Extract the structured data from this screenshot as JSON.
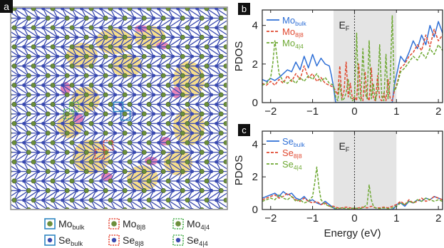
{
  "panel_a": {
    "label": "a",
    "legend": [
      {
        "main": "Mo",
        "sub": "bulk",
        "kind": "mo",
        "style": "solid",
        "color": "#2e86c1"
      },
      {
        "main": "Mo",
        "sub": "8|8",
        "kind": "mo",
        "style": "dashed",
        "color": "#e74c3c"
      },
      {
        "main": "Mo",
        "sub": "4|4",
        "kind": "mo",
        "style": "dashed",
        "color": "#4caf50"
      },
      {
        "main": "Se",
        "sub": "bulk",
        "kind": "se",
        "style": "solid",
        "color": "#2e86c1"
      },
      {
        "main": "Se",
        "sub": "8|8",
        "kind": "se",
        "style": "dashed",
        "color": "#e74c3c"
      },
      {
        "main": "Se",
        "sub": "4|4",
        "kind": "se",
        "style": "dashed",
        "color": "#4caf50"
      }
    ],
    "colors": {
      "mo": "#6c8f3c",
      "se": "#3a4ab0",
      "yellow": "#f7dc85",
      "pink": "#e685b9",
      "frame": "#888888"
    }
  },
  "chart_data": [
    {
      "type": "line",
      "panel": "b",
      "xlabel": "",
      "ylabel": "PDOS",
      "xlim": [
        -2.2,
        2.1
      ],
      "ylim": [
        0,
        4.8
      ],
      "xticks": [
        -2,
        -1,
        0,
        1,
        2
      ],
      "yticks": [
        0,
        2,
        4
      ],
      "xtick_labels": [
        "−2",
        "−1",
        "0",
        "1",
        "2"
      ],
      "ytick_labels": [
        "0",
        "2",
        "4"
      ],
      "fermi_label": {
        "main": "E",
        "sub": "F"
      },
      "gap_shade": [
        -0.5,
        1.0
      ],
      "legend": [
        {
          "main": "Mo",
          "sub": "bulk",
          "color": "#2e6fd6",
          "dashed": false
        },
        {
          "main": "Mo",
          "sub": "8|8",
          "color": "#e0482f",
          "dashed": true
        },
        {
          "main": "Mo",
          "sub": "4|4",
          "color": "#6da832",
          "dashed": true
        }
      ],
      "series": [
        {
          "color": "#2e6fd6",
          "dashed": false,
          "x": [
            -2.2,
            -2.1,
            -2.0,
            -1.9,
            -1.8,
            -1.7,
            -1.6,
            -1.5,
            -1.4,
            -1.3,
            -1.2,
            -1.1,
            -1.0,
            -0.9,
            -0.8,
            -0.7,
            -0.6,
            -0.55,
            -0.5,
            -0.45,
            0.9,
            0.95,
            1.0,
            1.05,
            1.1,
            1.2,
            1.3,
            1.4,
            1.5,
            1.6,
            1.7,
            1.8,
            1.9,
            2.0,
            2.1
          ],
          "y": [
            1.2,
            1.1,
            1.25,
            1.15,
            1.3,
            1.5,
            1.7,
            1.6,
            2.1,
            1.7,
            2.4,
            1.8,
            2.5,
            1.9,
            2.3,
            2.0,
            1.9,
            1.4,
            0.8,
            0,
            0,
            0.9,
            1.4,
            1.9,
            2.4,
            2.1,
            2.6,
            3.2,
            2.8,
            3.5,
            3.0,
            4.0,
            3.4,
            4.2,
            3.6
          ]
        },
        {
          "color": "#e0482f",
          "dashed": true,
          "x": [
            -2.2,
            -2.1,
            -2.0,
            -1.9,
            -1.8,
            -1.7,
            -1.6,
            -1.5,
            -1.4,
            -1.3,
            -1.2,
            -1.1,
            -1.0,
            -0.9,
            -0.8,
            -0.7,
            -0.6,
            -0.5,
            -0.4,
            -0.35,
            -0.3,
            -0.25,
            -0.2,
            -0.15,
            -0.1,
            -0.05,
            0.0,
            0.05,
            0.1,
            0.15,
            0.2,
            0.25,
            0.3,
            0.35,
            0.4,
            0.45,
            0.5,
            0.55,
            0.6,
            0.65,
            0.7,
            0.75,
            0.8,
            0.85,
            0.9,
            0.95,
            1.0,
            1.05,
            1.1,
            1.2,
            1.3,
            1.4,
            1.5,
            1.6,
            1.7,
            1.8,
            1.9,
            2.0,
            2.1
          ],
          "y": [
            1.0,
            0.9,
            1.1,
            0.9,
            1.2,
            1.0,
            1.4,
            1.1,
            1.5,
            1.2,
            1.9,
            1.3,
            1.5,
            1.1,
            1.3,
            1.0,
            0.9,
            0.8,
            0.4,
            1.9,
            0.2,
            0.6,
            2.1,
            0.3,
            1.0,
            0.2,
            0.3,
            0.1,
            2.0,
            0.3,
            0.1,
            1.6,
            0.3,
            0.1,
            1.8,
            0.2,
            0.1,
            1.4,
            0.2,
            0.1,
            0.5,
            0.1,
            1.2,
            0.2,
            0.1,
            0.6,
            0.9,
            1.3,
            1.8,
            2.0,
            2.4,
            2.6,
            3.0,
            2.7,
            3.5,
            2.9,
            3.8,
            3.2,
            3.5
          ]
        },
        {
          "color": "#6da832",
          "dashed": true,
          "x": [
            -2.2,
            -2.1,
            -2.0,
            -1.95,
            -1.9,
            -1.85,
            -1.8,
            -1.7,
            -1.6,
            -1.5,
            -1.4,
            -1.3,
            -1.2,
            -1.1,
            -1.0,
            -0.9,
            -0.8,
            -0.7,
            -0.6,
            -0.5,
            -0.45,
            -0.4,
            -0.35,
            -0.3,
            -0.25,
            -0.2,
            -0.15,
            -0.1,
            -0.05,
            0.0,
            0.05,
            0.1,
            0.15,
            0.2,
            0.25,
            0.3,
            0.35,
            0.4,
            0.45,
            0.5,
            0.55,
            0.6,
            0.65,
            0.7,
            0.75,
            0.8,
            0.85,
            0.9,
            0.95,
            1.0,
            1.05,
            1.1,
            1.2,
            1.3,
            1.4,
            1.5,
            1.6,
            1.7,
            1.8,
            1.9,
            2.0,
            2.1
          ],
          "y": [
            0.9,
            1.0,
            1.3,
            2.0,
            3.2,
            2.4,
            1.5,
            1.1,
            1.0,
            1.2,
            1.0,
            1.3,
            1.1,
            1.4,
            1.2,
            1.5,
            1.1,
            1.3,
            1.0,
            0.9,
            0.3,
            0.1,
            1.0,
            0.1,
            0.2,
            0.5,
            1.2,
            0.3,
            0.1,
            0.2,
            3.6,
            0.3,
            0.1,
            2.8,
            0.5,
            0.2,
            3.2,
            0.2,
            1.0,
            0.1,
            0.6,
            3.0,
            0.3,
            0.1,
            2.5,
            0.2,
            1.2,
            4.5,
            0.6,
            0.8,
            1.2,
            1.6,
            1.8,
            2.1,
            2.4,
            2.2,
            2.6,
            2.3,
            2.8,
            2.5,
            3.0,
            2.7
          ]
        }
      ]
    },
    {
      "type": "line",
      "panel": "c",
      "xlabel": "Energy (eV)",
      "ylabel": "PDOS",
      "xlim": [
        -2.2,
        2.1
      ],
      "ylim": [
        0,
        4.8
      ],
      "xticks": [
        -2,
        -1,
        0,
        1,
        2
      ],
      "yticks": [
        0,
        2,
        4
      ],
      "xtick_labels": [
        "−2",
        "−1",
        "0",
        "1",
        "2"
      ],
      "ytick_labels": [
        "0",
        "2",
        "4"
      ],
      "fermi_label": {
        "main": "E",
        "sub": "F"
      },
      "gap_shade": [
        -0.5,
        1.0
      ],
      "legend": [
        {
          "main": "Se",
          "sub": "bulk",
          "color": "#2e6fd6",
          "dashed": false
        },
        {
          "main": "Se",
          "sub": "8|8",
          "color": "#e0482f",
          "dashed": true
        },
        {
          "main": "Se",
          "sub": "4|4",
          "color": "#6da832",
          "dashed": true
        }
      ],
      "series": [
        {
          "color": "#2e6fd6",
          "dashed": false,
          "x": [
            -2.2,
            -2.1,
            -2.0,
            -1.9,
            -1.8,
            -1.7,
            -1.6,
            -1.5,
            -1.4,
            -1.3,
            -1.2,
            -1.1,
            -1.0,
            -0.9,
            -0.8,
            -0.7,
            -0.6,
            -0.55,
            -0.5,
            -0.45,
            0.9,
            0.95,
            1.0,
            1.1,
            1.2,
            1.3,
            1.4,
            1.5,
            1.6,
            1.7,
            1.8,
            1.9,
            2.0,
            2.1
          ],
          "y": [
            0.7,
            0.8,
            0.9,
            1.0,
            0.8,
            1.1,
            0.9,
            1.0,
            0.7,
            0.6,
            0.8,
            0.5,
            0.6,
            0.4,
            0.3,
            0.5,
            0.3,
            0.2,
            0.1,
            0,
            0,
            0.1,
            0.3,
            0.4,
            0.2,
            0.5,
            0.4,
            0.6,
            0.5,
            0.7,
            0.6,
            0.8,
            0.7,
            0.6
          ]
        },
        {
          "color": "#e0482f",
          "dashed": true,
          "x": [
            -2.2,
            -2.1,
            -2.0,
            -1.9,
            -1.8,
            -1.7,
            -1.6,
            -1.5,
            -1.4,
            -1.3,
            -1.2,
            -1.1,
            -1.0,
            -0.9,
            -0.8,
            -0.7,
            -0.6,
            -0.5,
            -0.4,
            -0.3,
            -0.2,
            -0.1,
            0.0,
            0.1,
            0.2,
            0.3,
            0.4,
            0.5,
            0.6,
            0.7,
            0.8,
            0.9,
            1.0,
            1.1,
            1.2,
            1.3,
            1.4,
            1.5,
            1.6,
            1.7,
            1.8,
            1.9,
            2.0,
            2.1
          ],
          "y": [
            0.6,
            0.7,
            0.8,
            0.9,
            0.7,
            0.8,
            1.0,
            0.8,
            0.6,
            0.5,
            0.7,
            0.5,
            0.4,
            0.5,
            0.3,
            0.4,
            0.2,
            0.2,
            0.1,
            0.1,
            0.15,
            0.1,
            0.05,
            0.1,
            0.15,
            0.1,
            0.2,
            0.1,
            0.1,
            0.15,
            0.1,
            0.2,
            0.3,
            0.5,
            0.3,
            0.6,
            0.4,
            0.5,
            0.7,
            0.5,
            0.6,
            0.8,
            0.7,
            0.6
          ]
        },
        {
          "color": "#6da832",
          "dashed": true,
          "x": [
            -2.2,
            -2.1,
            -2.0,
            -1.9,
            -1.8,
            -1.7,
            -1.6,
            -1.5,
            -1.4,
            -1.3,
            -1.2,
            -1.1,
            -1.0,
            -0.95,
            -0.9,
            -0.85,
            -0.8,
            -0.7,
            -0.6,
            -0.5,
            -0.4,
            -0.3,
            -0.2,
            -0.1,
            0.0,
            0.1,
            0.2,
            0.3,
            0.35,
            0.4,
            0.45,
            0.5,
            0.6,
            0.7,
            0.8,
            0.9,
            1.0,
            1.1,
            1.2,
            1.3,
            1.4,
            1.5,
            1.6,
            1.7,
            1.8,
            1.9,
            2.0,
            2.1
          ],
          "y": [
            0.5,
            0.6,
            0.7,
            0.6,
            0.9,
            0.7,
            0.6,
            0.8,
            0.5,
            0.6,
            0.4,
            0.5,
            0.8,
            1.6,
            2.6,
            1.4,
            0.6,
            0.3,
            0.2,
            0.1,
            0.05,
            0.1,
            0.05,
            0.05,
            0.1,
            0.05,
            0.1,
            0.3,
            1.5,
            0.6,
            0.2,
            0.1,
            0.05,
            0.1,
            0.05,
            0.1,
            0.2,
            0.4,
            0.3,
            0.5,
            0.4,
            0.6,
            0.5,
            0.7,
            0.6,
            0.5,
            0.6,
            0.5
          ]
        }
      ]
    }
  ]
}
